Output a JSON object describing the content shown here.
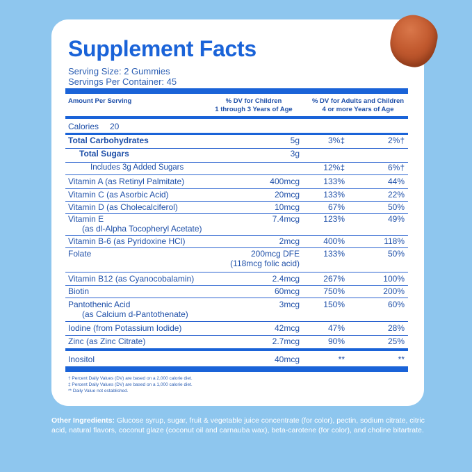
{
  "title": "Supplement Facts",
  "serving_size": "Serving Size: 2 Gummies",
  "servings_per_container": "Servings Per Container: 45",
  "header": {
    "amount": "Amount Per Serving",
    "children_1": "% DV for Children",
    "children_2": "1 through 3 Years of Age",
    "adults_1": "% DV for Adults and Children",
    "adults_2": "4 or more Years of Age"
  },
  "calories": {
    "label": "Calories",
    "value": "20"
  },
  "rows": [
    {
      "name": "Total Carbohydrates",
      "amount": "5g",
      "dv_children": "3%‡",
      "dv_adults": "2%†"
    },
    {
      "name": "Total Sugars",
      "amount": "3g",
      "dv_children": "",
      "dv_adults": ""
    },
    {
      "name": "Includes 3g Added Sugars",
      "amount": "",
      "dv_children": "12%‡",
      "dv_adults": "6%†"
    },
    {
      "name": "Vitamin A (as Retinyl Palmitate)",
      "amount": "400mcg",
      "dv_children": "133%",
      "dv_adults": "44%"
    },
    {
      "name": "Vitamin C (as Asorbic Acid)",
      "amount": "20mcg",
      "dv_children": "133%",
      "dv_adults": "22%"
    },
    {
      "name": "Vitamin D (as Cholecalciferol)",
      "amount": "10mcg",
      "dv_children": "67%",
      "dv_adults": "50%"
    },
    {
      "name": "Vitamin E",
      "name2": "(as dl-Alpha Tocopheryl Acetate)",
      "amount": "7.4mcg",
      "dv_children": "123%",
      "dv_adults": "49%"
    },
    {
      "name": "Vitamin B-6 (as Pyridoxine HCl)",
      "amount": "2mcg",
      "dv_children": "400%",
      "dv_adults": "118%"
    },
    {
      "name": "Folate",
      "amount": "200mcg DFE",
      "amount2": "(118mcg folic acid)",
      "dv_children": "133%",
      "dv_adults": "50%"
    },
    {
      "name": "Vitamin B12 (as Cyanocobalamin)",
      "amount": "2.4mcg",
      "dv_children": "267%",
      "dv_adults": "100%"
    },
    {
      "name": "Biotin",
      "amount": "60mcg",
      "dv_children": "750%",
      "dv_adults": "200%"
    },
    {
      "name": "Pantothenic Acid",
      "name2": "(as Calcium d-Pantothenate)",
      "amount": "3mcg",
      "dv_children": "150%",
      "dv_adults": "60%"
    },
    {
      "name": "Iodine (from Potassium Iodide)",
      "amount": "42mcg",
      "dv_children": "47%",
      "dv_adults": "28%"
    },
    {
      "name": "Zinc (as Zinc Citrate)",
      "amount": "2.7mcg",
      "dv_children": "90%",
      "dv_adults": "25%"
    },
    {
      "name": "Inositol",
      "amount": "40mcg",
      "dv_children": "**",
      "dv_adults": "**"
    }
  ],
  "footnotes": [
    "† Percent Daily Values (DV) are based on a 2,000 calorie diet.",
    "‡ Percent Daily Values (DV) are based on a 1,000 calorie diet.",
    "** Daily Value not established."
  ],
  "other_ingredients": {
    "label": "Other Ingredients:",
    "text": "Glucose syrup, sugar, fruit & vegetable juice concentrate (for color), pectin, sodium citrate, citric acid, natural flavors, coconut glaze (coconut oil and carnauba wax), beta-carotene (for color), and choline bitartrate."
  },
  "colors": {
    "background": "#8ec6ee",
    "card": "#ffffff",
    "accent": "#1a63d8",
    "text": "#1e4fa8",
    "gummy": "#c25a2f"
  }
}
